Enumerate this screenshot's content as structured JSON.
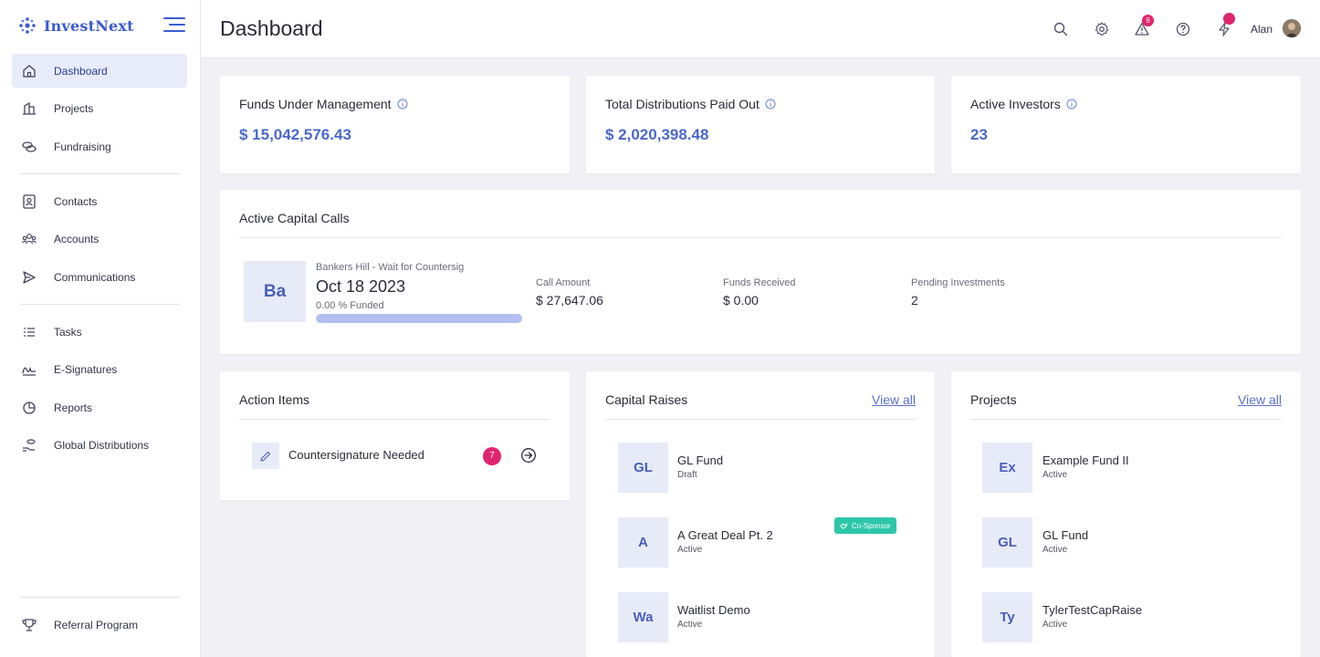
{
  "app": {
    "brand": "InvestNext",
    "page_title": "Dashboard",
    "user": "Alan",
    "alerts_count": "9"
  },
  "sidebar": {
    "items": [
      {
        "label": "Dashboard",
        "icon": "home-icon"
      },
      {
        "label": "Projects",
        "icon": "building-icon"
      },
      {
        "label": "Fundraising",
        "icon": "coins-icon"
      },
      {
        "label": "Contacts",
        "icon": "contact-icon"
      },
      {
        "label": "Accounts",
        "icon": "users-icon"
      },
      {
        "label": "Communications",
        "icon": "send-icon"
      },
      {
        "label": "Tasks",
        "icon": "list-icon"
      },
      {
        "label": "E-Signatures",
        "icon": "signature-icon"
      },
      {
        "label": "Reports",
        "icon": "pie-chart-icon"
      },
      {
        "label": "Global Distributions",
        "icon": "hand-coins-icon"
      }
    ],
    "referral": {
      "label": "Referral Program",
      "icon": "trophy-icon"
    }
  },
  "stats": {
    "funds_title": "Funds Under Management",
    "funds_value": "$ 15,042,576.43",
    "distributions_title": "Total Distributions Paid Out",
    "distributions_value": "$ 2,020,398.48",
    "investors_title": "Active Investors",
    "investors_value": "23"
  },
  "capital_calls": {
    "title": "Active Capital Calls",
    "tile": "Ba",
    "name": "Bankers Hill - Wait for Countersig",
    "date": "Oct 18 2023",
    "funded": "0.00 % Funded",
    "funded_fraction": 0.0,
    "call_amount_label": "Call Amount",
    "call_amount": "$ 27,647.06",
    "funds_received_label": "Funds Received",
    "funds_received": "$ 0.00",
    "pending_label": "Pending Investments",
    "pending": "2"
  },
  "action_items": {
    "title": "Action Items",
    "item_label": "Countersignature Needed",
    "item_count": "7"
  },
  "capital_raises": {
    "title": "Capital Raises",
    "view_all": "View all",
    "items": [
      {
        "tile": "GL",
        "name": "GL Fund",
        "status": "Draft"
      },
      {
        "tile": "A",
        "name": "A Great Deal Pt. 2",
        "status": "Active",
        "tag": "Co-Sponsor"
      },
      {
        "tile": "Wa",
        "name": "Waitlist Demo",
        "status": "Active"
      }
    ]
  },
  "projects": {
    "title": "Projects",
    "view_all": "View all",
    "items": [
      {
        "tile": "Ex",
        "name": "Example Fund II",
        "status": "Active"
      },
      {
        "tile": "GL",
        "name": "GL Fund",
        "status": "Active"
      },
      {
        "tile": "Ty",
        "name": "TylerTestCapRaise",
        "status": "Active"
      }
    ]
  },
  "colors": {
    "accent": "#4a68c9",
    "badge": "#e0246e",
    "tag": "#2ec6a8",
    "tile_bg": "#e7ebf8"
  }
}
